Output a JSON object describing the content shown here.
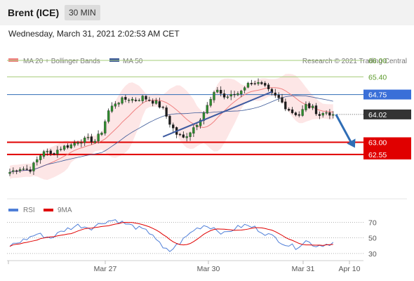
{
  "header": {
    "title": "Brent (ICE)",
    "timeframe": "30 MIN"
  },
  "datetime": "Wednesday, March 31, 2021 2:02:53 AM CET",
  "legend": {
    "ma20": "MA 20 + Bollinger Bands",
    "ma50": "MA 50",
    "credit": "Research © 2021 Trading Central",
    "rsi": "RSI",
    "rsi_ma": "9MA"
  },
  "colors": {
    "ma20": "#f08080",
    "ma50": "#3d5a99",
    "band_fill": "#fde3e3",
    "green_level": "#a6cc7a",
    "green_text": "#5c9a2a",
    "blue_level": "#2f6db5",
    "pivot_badge": "#3a6fd8",
    "price_badge": "#333333",
    "support": "#e00000",
    "rsi": "#4f7fd8",
    "rsi_ma": "#e00000"
  },
  "chart_data": {
    "type": "candlestick",
    "price_ylim": [
      61.6,
      66.6
    ],
    "x_ticks": [
      "Mar 27",
      "Mar 30",
      "Mar 31",
      "Apr 10"
    ],
    "levels": [
      {
        "label": "66.00",
        "value": 66.0,
        "kind": "resistance"
      },
      {
        "label": "65.40",
        "value": 65.4,
        "kind": "resistance"
      },
      {
        "label": "64.75",
        "value": 64.75,
        "kind": "pivot"
      },
      {
        "label": "64.02",
        "value": 64.02,
        "kind": "last"
      },
      {
        "label": "63.00",
        "value": 63.0,
        "kind": "support"
      },
      {
        "label": "62.55",
        "value": 62.55,
        "kind": "support"
      }
    ],
    "close_anchors": [
      [
        0,
        61.9
      ],
      [
        3,
        62.05
      ],
      [
        6,
        62.0
      ],
      [
        8,
        62.35
      ],
      [
        10,
        62.7
      ],
      [
        12,
        62.55
      ],
      [
        15,
        62.8
      ],
      [
        18,
        62.9
      ],
      [
        20,
        63.05
      ],
      [
        23,
        63.1
      ],
      [
        25,
        63.05
      ],
      [
        27,
        63.4
      ],
      [
        29,
        64.15
      ],
      [
        31,
        64.45
      ],
      [
        33,
        64.55
      ],
      [
        35,
        64.6
      ],
      [
        37,
        64.55
      ],
      [
        39,
        64.65
      ],
      [
        41,
        64.55
      ],
      [
        43,
        64.45
      ],
      [
        45,
        64.2
      ],
      [
        47,
        63.7
      ],
      [
        49,
        63.3
      ],
      [
        51,
        63.15
      ],
      [
        53,
        63.4
      ],
      [
        55,
        63.7
      ],
      [
        57,
        64.1
      ],
      [
        59,
        64.55
      ],
      [
        61,
        64.95
      ],
      [
        63,
        64.65
      ],
      [
        65,
        64.7
      ],
      [
        67,
        64.8
      ],
      [
        69,
        65.05
      ],
      [
        71,
        65.2
      ],
      [
        73,
        65.15
      ],
      [
        75,
        65.0
      ],
      [
        77,
        64.75
      ],
      [
        79,
        64.6
      ],
      [
        81,
        64.3
      ],
      [
        83,
        64.1
      ],
      [
        85,
        64.0
      ],
      [
        87,
        64.35
      ],
      [
        89,
        64.25
      ],
      [
        91,
        64.0
      ],
      [
        93,
        64.1
      ],
      [
        95,
        64.02
      ]
    ],
    "trend_lines": [
      {
        "from": [
          45,
          63.2
        ],
        "to": [
          77,
          64.85
        ]
      }
    ],
    "forecast_arrow": {
      "from": [
        95,
        64.02
      ],
      "to": [
        101,
        62.95
      ]
    },
    "rsi": {
      "ticks": [
        70,
        50,
        30
      ],
      "ylim": [
        20,
        82
      ],
      "anchors": [
        [
          0,
          40
        ],
        [
          4,
          47
        ],
        [
          8,
          55
        ],
        [
          12,
          50
        ],
        [
          16,
          60
        ],
        [
          20,
          66
        ],
        [
          24,
          63
        ],
        [
          28,
          71
        ],
        [
          31,
          73
        ],
        [
          34,
          68
        ],
        [
          38,
          62
        ],
        [
          42,
          55
        ],
        [
          45,
          36
        ],
        [
          47,
          33
        ],
        [
          50,
          44
        ],
        [
          54,
          60
        ],
        [
          57,
          66
        ],
        [
          60,
          63
        ],
        [
          63,
          55
        ],
        [
          66,
          62
        ],
        [
          69,
          66
        ],
        [
          72,
          63
        ],
        [
          75,
          56
        ],
        [
          78,
          50
        ],
        [
          81,
          42
        ],
        [
          84,
          38
        ],
        [
          87,
          46
        ],
        [
          90,
          40
        ],
        [
          93,
          42
        ],
        [
          95,
          44
        ]
      ]
    }
  }
}
